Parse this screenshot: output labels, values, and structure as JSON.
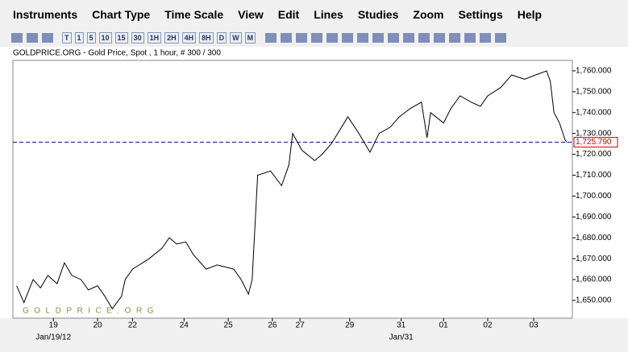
{
  "menu": [
    "Instruments",
    "Chart Type",
    "Time Scale",
    "View",
    "Edit",
    "Lines",
    "Studies",
    "Zoom",
    "Settings",
    "Help"
  ],
  "toolbar": [
    "T",
    "1",
    "5",
    "10",
    "15",
    "30",
    "1H",
    "2H",
    "4H",
    "8H",
    "D",
    "W",
    "M"
  ],
  "chart_data": {
    "type": "line",
    "title": "GOLDPRICE.ORG - Gold Price, Spot , 1 hour, # 300 / 300",
    "watermark": "GOLDPRICE.ORG",
    "x": [
      0,
      4,
      9,
      13,
      17,
      22,
      26,
      30,
      35,
      39,
      44,
      48,
      52,
      57,
      59,
      63,
      72,
      79,
      83,
      87,
      92,
      96,
      103,
      109,
      118,
      122,
      126,
      128,
      131,
      138,
      144,
      148,
      150,
      155,
      162,
      166,
      171,
      178,
      180,
      186,
      192,
      197,
      203,
      208,
      214,
      220,
      223,
      225,
      232,
      236,
      241,
      247,
      252,
      256,
      263,
      269,
      276,
      282,
      288,
      290,
      292,
      295,
      298,
      299
    ],
    "values": [
      1657,
      1649,
      1660,
      1656,
      1662,
      1658,
      1668,
      1662,
      1660,
      1655,
      1657,
      1652,
      1646,
      1652,
      1660,
      1665,
      1670,
      1675,
      1680,
      1677,
      1678,
      1672,
      1665,
      1667,
      1665,
      1660,
      1653,
      1660,
      1710,
      1712,
      1705,
      1715,
      1730,
      1722,
      1717,
      1720,
      1725,
      1735,
      1738,
      1730,
      1721,
      1730,
      1733,
      1738,
      1742,
      1745,
      1728,
      1740,
      1735,
      1742,
      1748,
      1745,
      1743,
      1748,
      1752,
      1758,
      1756,
      1758,
      1760,
      1755,
      1740,
      1735,
      1727,
      1725.79
    ],
    "color": "#000000",
    "xlim": [
      -2,
      302
    ],
    "xticks": [
      {
        "value": 20,
        "label": "19"
      },
      {
        "value": 44,
        "label": "20"
      },
      {
        "value": 63,
        "label": "22"
      },
      {
        "value": 91,
        "label": "24"
      },
      {
        "value": 115,
        "label": "25"
      },
      {
        "value": 139,
        "label": "26"
      },
      {
        "value": 154,
        "label": "27"
      },
      {
        "value": 181,
        "label": "29"
      },
      {
        "value": 209,
        "label": "31"
      },
      {
        "value": 232,
        "label": "01"
      },
      {
        "value": 256,
        "label": "02"
      },
      {
        "value": 281,
        "label": "03"
      }
    ],
    "date_labels": [
      {
        "value": 20,
        "label": "Jan/19/12"
      },
      {
        "value": 209,
        "label": "Jan/31"
      }
    ],
    "ylim": [
      1641.5,
      1765
    ],
    "yticks": [
      {
        "value": 1650,
        "label": "1,650.000"
      },
      {
        "value": 1660,
        "label": "1,660.000"
      },
      {
        "value": 1670,
        "label": "1,670.000"
      },
      {
        "value": 1680,
        "label": "1,680.000"
      },
      {
        "value": 1690,
        "label": "1,690.000"
      },
      {
        "value": 1700,
        "label": "1,700.000"
      },
      {
        "value": 1710,
        "label": "1,710.000"
      },
      {
        "value": 1720,
        "label": "1,720.000"
      },
      {
        "value": 1730,
        "label": "1,730.000"
      },
      {
        "value": 1740,
        "label": "1,740.000"
      },
      {
        "value": 1750,
        "label": "1,750.000"
      },
      {
        "value": 1760,
        "label": "1,760.000"
      }
    ],
    "current": {
      "value": 1725.79,
      "label": "1,725.790",
      "color": "#00008b"
    }
  }
}
